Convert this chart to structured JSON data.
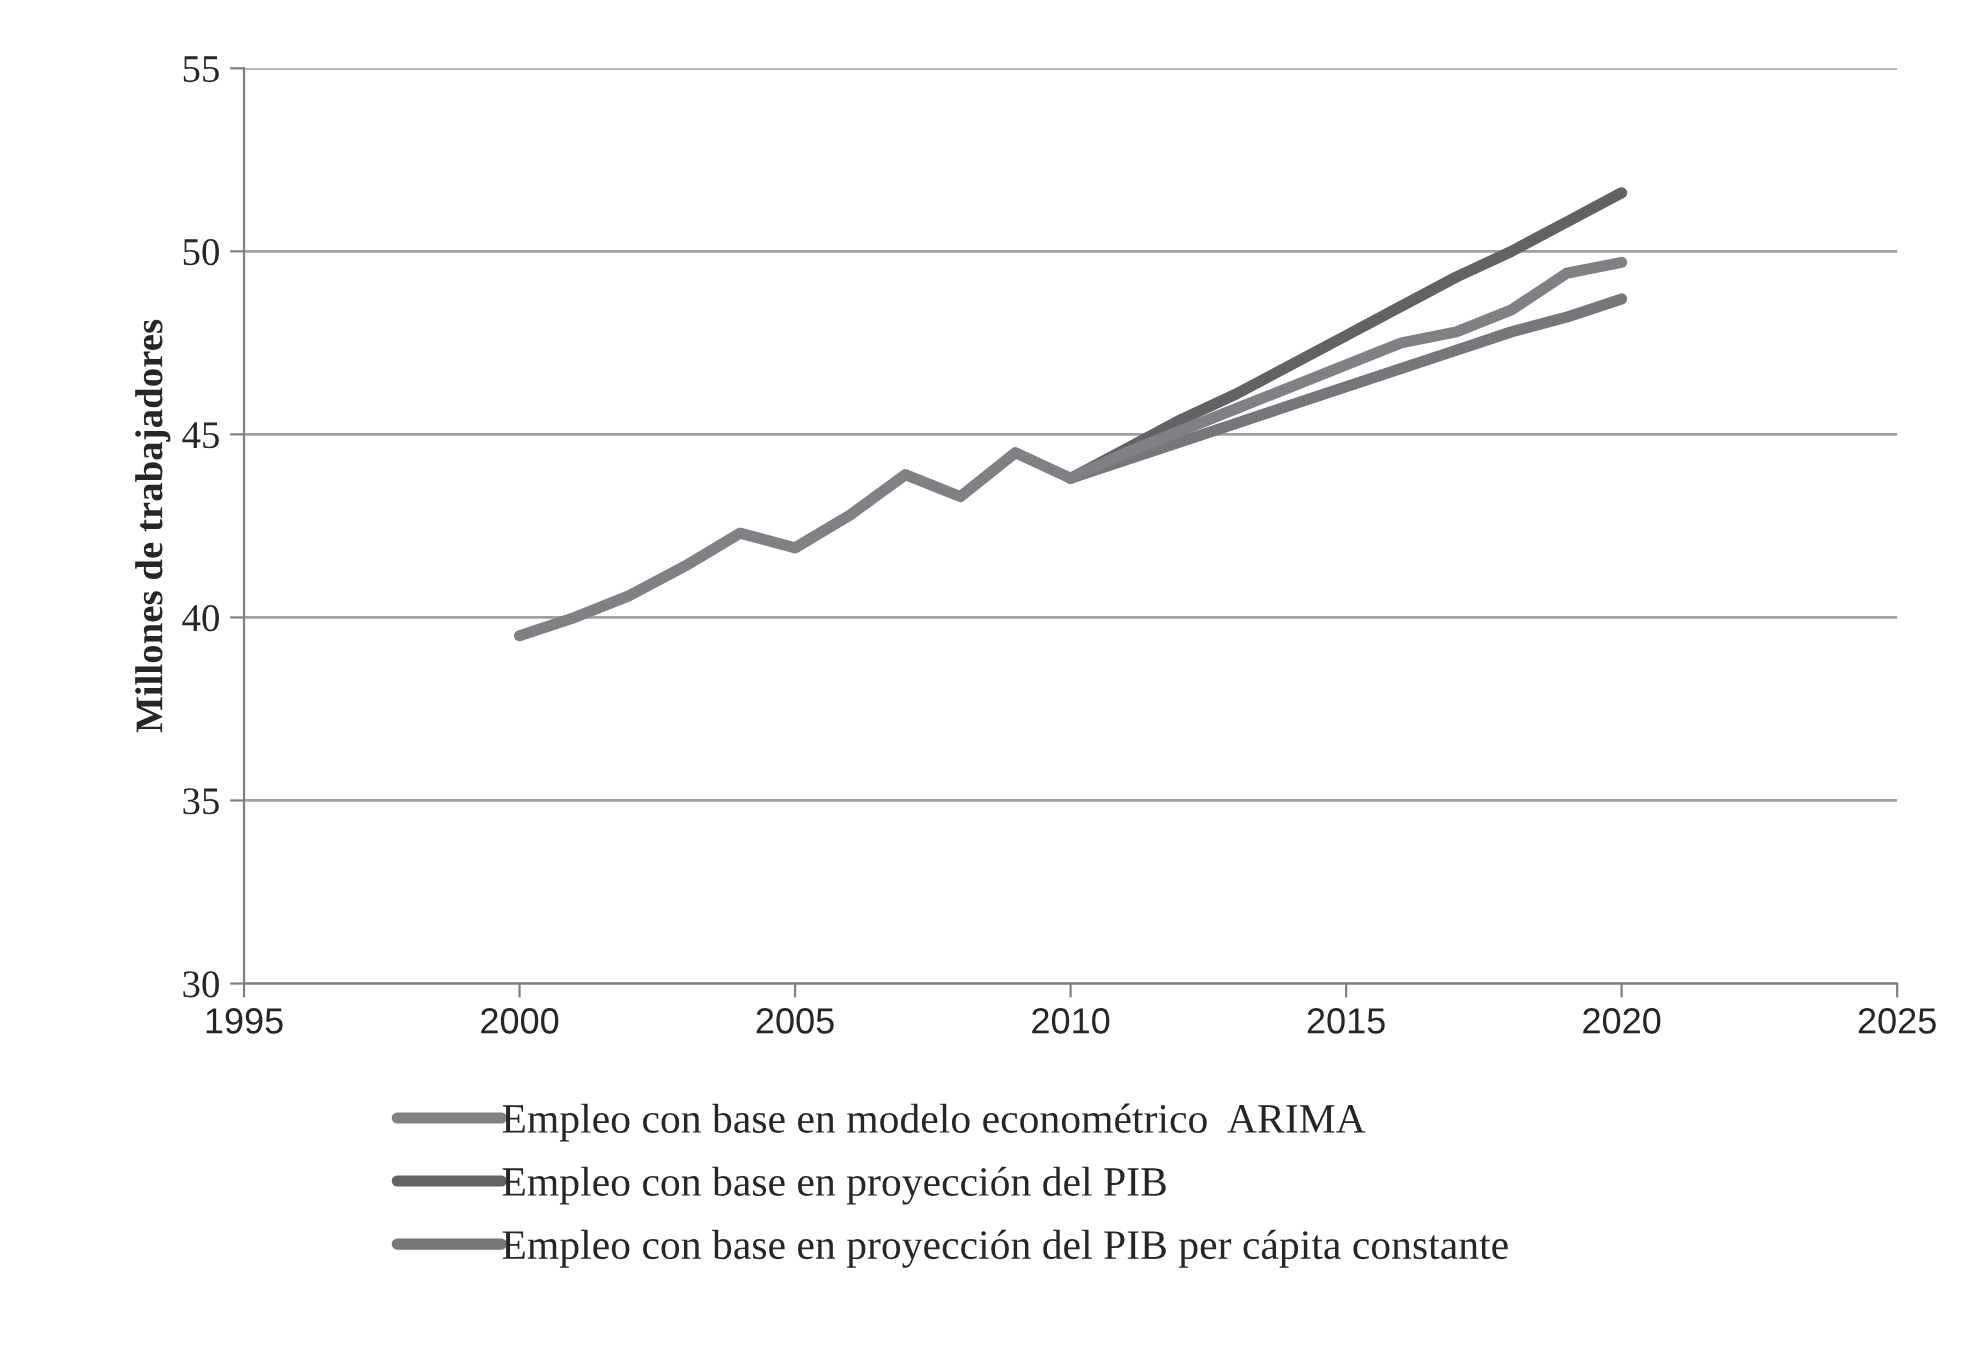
{
  "chart_data": {
    "type": "line",
    "ylabel": "Millones de trabajadores",
    "series": [
      {
        "name": "Empleo con base en modelo econométrico  ARIMA",
        "color": "#818185",
        "x": [
          2000,
          2001,
          2002,
          2003,
          2004,
          2005,
          2006,
          2007,
          2008,
          2009,
          2010,
          2011,
          2012,
          2013,
          2014,
          2015,
          2016,
          2017,
          2018,
          2019,
          2020
        ],
        "values": [
          39.5,
          40.0,
          40.6,
          41.4,
          42.3,
          41.9,
          42.8,
          43.9,
          43.3,
          44.5,
          43.8,
          44.5,
          45.1,
          45.7,
          46.3,
          46.9,
          47.5,
          47.8,
          48.4,
          49.4,
          49.7
        ]
      },
      {
        "name": "Empleo con base en proyección del PIB",
        "color": "#626264",
        "x": [
          2010,
          2011,
          2012,
          2013,
          2014,
          2015,
          2016,
          2017,
          2018,
          2019,
          2020
        ],
        "values": [
          43.8,
          44.6,
          45.4,
          46.1,
          46.9,
          47.7,
          48.5,
          49.3,
          50.0,
          50.8,
          51.6
        ]
      },
      {
        "name": "Empleo con base en proyección del PIB per cápita constante",
        "color": "#77777b",
        "x": [
          2010,
          2011,
          2012,
          2013,
          2014,
          2015,
          2016,
          2017,
          2018,
          2019,
          2020
        ],
        "values": [
          43.8,
          44.3,
          44.8,
          45.3,
          45.8,
          46.3,
          46.8,
          47.3,
          47.8,
          48.2,
          48.7
        ]
      }
    ],
    "xlim": [
      1995,
      2025
    ],
    "xticks": [
      1995,
      2000,
      2005,
      2010,
      2015,
      2020,
      2025
    ],
    "ylim": [
      30,
      55
    ],
    "yticks": [
      30,
      35,
      40,
      45,
      50,
      55
    ],
    "grid": "y",
    "legend": "bottom",
    "marker": "none",
    "line_style": "solid"
  }
}
